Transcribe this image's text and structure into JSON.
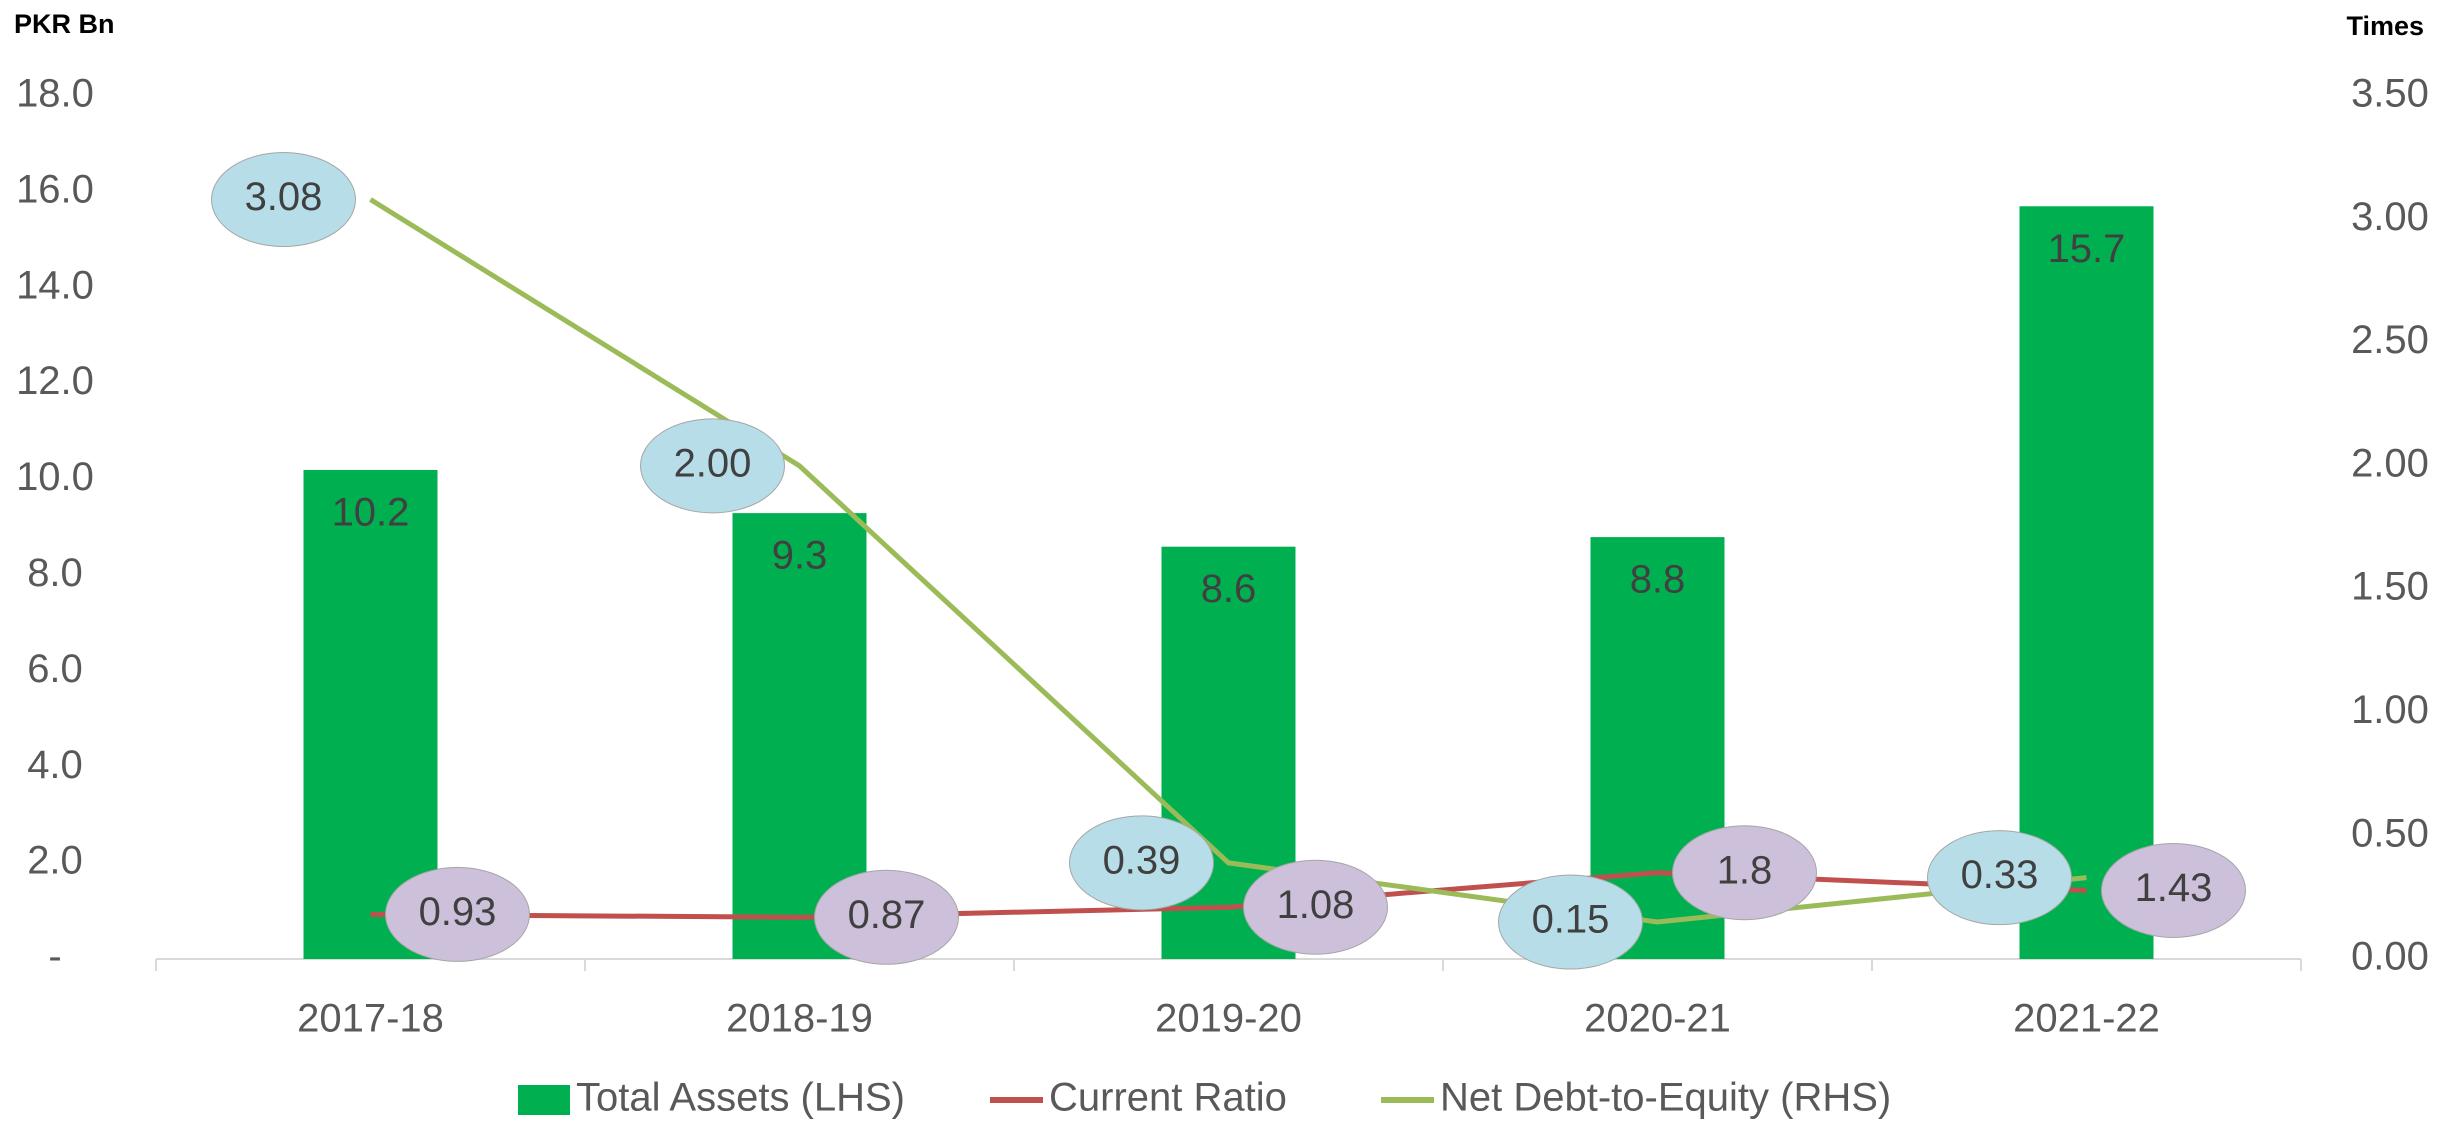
{
  "chart_data": {
    "type": "bar_line",
    "y_label": "PKR Bn",
    "y2_label": "Times",
    "categories": [
      "2017-18",
      "2018-19",
      "2019-20",
      "2020-21",
      "2021-22"
    ],
    "series": [
      {
        "name": "Total Assets (LHS)",
        "type": "bar",
        "color": "#00b050",
        "values": [
          10.2,
          9.3,
          8.6,
          8.8,
          15.7
        ],
        "value_labels": [
          "10.2",
          "9.3",
          "8.6",
          "8.8",
          "15.7"
        ]
      },
      {
        "name": "Current Ratio",
        "type": "line",
        "color": "#c0504d",
        "values": [
          0.93,
          0.87,
          1.08,
          1.8,
          1.43
        ],
        "value_labels": [
          "0.93",
          "0.87",
          "1.08",
          "1.8",
          "1.43"
        ]
      },
      {
        "name": "Net Debt-to-Equity (RHS)",
        "type": "line",
        "axis": "y2",
        "color": "#9bbb59",
        "values": [
          3.08,
          2.0,
          0.39,
          0.15,
          0.33
        ],
        "value_labels": [
          "3.08",
          "2.00",
          "0.39",
          "0.15",
          "0.33"
        ]
      }
    ],
    "ylim": [
      0,
      18
    ],
    "yticks": [
      {
        "value": 0,
        "label": "-"
      },
      {
        "value": 2,
        "label": "2.0"
      },
      {
        "value": 4,
        "label": "4.0"
      },
      {
        "value": 6,
        "label": "6.0"
      },
      {
        "value": 8,
        "label": "8.0"
      },
      {
        "value": 10,
        "label": "10.0"
      },
      {
        "value": 12,
        "label": "12.0"
      },
      {
        "value": 14,
        "label": "14.0"
      },
      {
        "value": 16,
        "label": "16.0"
      },
      {
        "value": 18,
        "label": "18.0"
      }
    ],
    "y2lim": [
      0,
      3.5
    ],
    "y2ticks": [
      {
        "value": 0,
        "label": "0.00"
      },
      {
        "value": 0.5,
        "label": "0.50"
      },
      {
        "value": 1,
        "label": "1.00"
      },
      {
        "value": 1.5,
        "label": "1.50"
      },
      {
        "value": 2,
        "label": "2.00"
      },
      {
        "value": 2.5,
        "label": "2.50"
      },
      {
        "value": 3,
        "label": "3.00"
      },
      {
        "value": 3.5,
        "label": "3.50"
      }
    ],
    "legend": "bottom"
  }
}
